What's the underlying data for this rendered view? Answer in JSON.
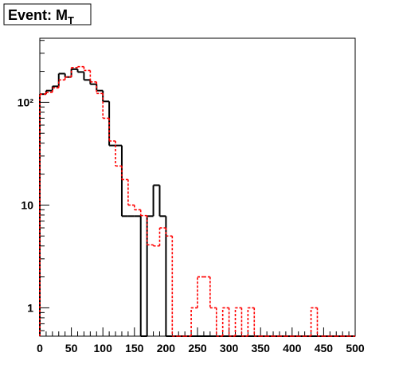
{
  "chart_data": {
    "type": "histogram",
    "title": {
      "text": "Event: M",
      "subscript": "T"
    },
    "bins": [
      0,
      10,
      20,
      30,
      40,
      50,
      60,
      70,
      80,
      90,
      100,
      110,
      120,
      130,
      140,
      150,
      160,
      170,
      180,
      190,
      200,
      210,
      220,
      230,
      240,
      250,
      260,
      270,
      280,
      290,
      300,
      310,
      320,
      330,
      340,
      350,
      360,
      370,
      380,
      390,
      400,
      410,
      420,
      430,
      440,
      450,
      460,
      470,
      480,
      490,
      500
    ],
    "series": [
      {
        "color": "#000000",
        "style": "solid",
        "values": [
          120,
          130,
          143,
          190,
          176,
          210,
          197,
          165,
          150,
          130,
          102,
          38,
          38,
          7.8,
          7.8,
          7.8,
          0,
          7.8,
          15.6,
          7.8,
          0,
          0,
          0,
          0,
          0,
          0,
          0,
          0,
          0,
          0,
          0,
          0,
          0,
          0,
          0,
          0,
          0,
          0,
          0,
          0,
          0,
          0,
          0,
          0,
          0,
          0,
          0,
          0,
          0,
          0
        ]
      },
      {
        "color": "#ff0000",
        "style": "dashed",
        "values": [
          120,
          125,
          138,
          165,
          176,
          218,
          222,
          204,
          158,
          122,
          70,
          42,
          24,
          17.7,
          10,
          9,
          7.9,
          4.1,
          4,
          6,
          5,
          0,
          0,
          0,
          1,
          2,
          2,
          1,
          0,
          1,
          0,
          1,
          0,
          1,
          0,
          0,
          0,
          0,
          0,
          0,
          0,
          0,
          0,
          1,
          0,
          0,
          0,
          0,
          0,
          0
        ]
      }
    ],
    "xlim": [
      0,
      500
    ],
    "xticks": [
      0,
      50,
      100,
      150,
      200,
      250,
      300,
      350,
      400,
      450,
      500
    ],
    "ylim": [
      0.53,
      420
    ],
    "yticks": [
      1,
      10,
      {
        "value": 100,
        "label": "10²"
      }
    ],
    "log_y": true
  }
}
